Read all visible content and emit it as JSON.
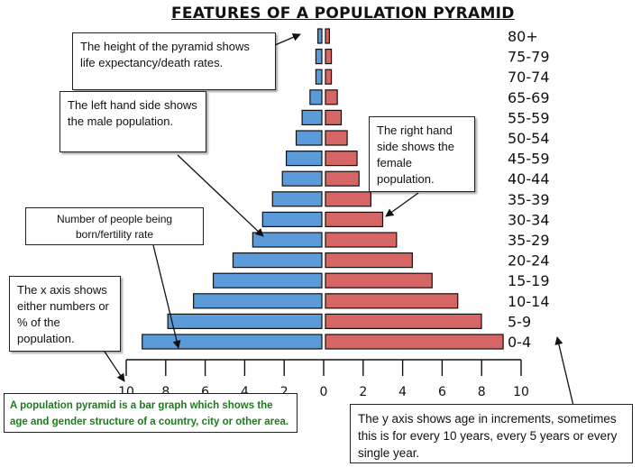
{
  "title": "FEATURES OF A POPULATION PYRAMID",
  "notes": {
    "height": "The height of the pyramid shows life expectancy/death rates.",
    "male": "The left hand side shows the male population.",
    "female": "The right hand side shows the female population.",
    "births": "Number of people being born/fertility rate",
    "xaxis": "The x axis shows either numbers or % of the population.",
    "yaxis": "The y axis shows age in increments, sometimes this is for every 10 years, every 5 years or every single year.",
    "definition": "A population pyramid is a bar graph which shows the age and gender structure of a country, city or other area."
  },
  "colors": {
    "male": "#5b9bd9",
    "female": "#d66565"
  },
  "chart_data": {
    "type": "bar",
    "categories": [
      "80+",
      "75-79",
      "70-74",
      "65-69",
      "55-59",
      "50-54",
      "45-59",
      "40-44",
      "35-39",
      "30-34",
      "35-29",
      "20-24",
      "15-19",
      "10-14",
      "5-9",
      "0-4"
    ],
    "series": [
      {
        "values": [
          0.2,
          0.3,
          0.3,
          0.6,
          1.0,
          1.3,
          1.8,
          2.0,
          2.5,
          3.0,
          3.5,
          4.5,
          5.5,
          6.5,
          7.8,
          9.1
        ]
      },
      {
        "values": [
          0.2,
          0.3,
          0.3,
          0.6,
          0.8,
          1.1,
          1.6,
          1.7,
          2.3,
          2.9,
          3.6,
          4.4,
          5.4,
          6.7,
          7.9,
          9.0
        ]
      }
    ],
    "x_ticks": [
      10,
      8,
      6,
      4,
      2,
      0,
      2,
      4,
      6,
      8,
      10
    ],
    "xlim": [
      -10,
      10
    ],
    "orientation": "horizontal"
  }
}
